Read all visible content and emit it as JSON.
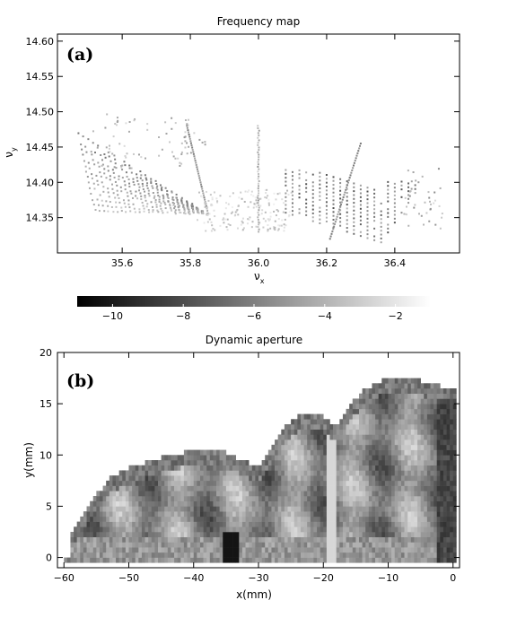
{
  "chart_data": [
    {
      "type": "scatter",
      "panel_label": "(a)",
      "title": "Frequency map",
      "xlabel": "ν",
      "xlabel_sub": "x",
      "ylabel": "ν",
      "ylabel_sub": "y",
      "xlim": [
        35.41,
        36.59
      ],
      "ylim": [
        14.3,
        14.61
      ],
      "xticks": [
        35.6,
        35.8,
        36.0,
        36.2,
        36.4
      ],
      "xtick_labels": [
        "35.6",
        "35.8",
        "36.0",
        "36.2",
        "36.4"
      ],
      "yticks": [
        14.35,
        14.4,
        14.45,
        14.5,
        14.55,
        14.6
      ],
      "ytick_labels": [
        "14.35",
        "14.40",
        "14.45",
        "14.50",
        "14.55",
        "14.60"
      ],
      "grid": false,
      "color_scale": "diffusion (log10), dark = -11, light = -1",
      "features": {
        "left_fan": {
          "apex": [
            35.85,
            14.355
          ],
          "x_range": [
            35.47,
            35.85
          ],
          "top_y_at_left": 14.47
        },
        "near_center_resonance": {
          "x_bottom": 35.85,
          "x_top": 35.79,
          "y_range": [
            14.36,
            14.48
          ]
        },
        "vertical_line_36": {
          "x": 36.0,
          "y_range": [
            14.33,
            14.48
          ]
        },
        "crossing_line": {
          "from": [
            36.21,
            14.32
          ],
          "to": [
            36.3,
            14.455
          ]
        },
        "right_fan": {
          "apex": [
            36.36,
            14.315
          ],
          "x_range": [
            36.08,
            36.46
          ],
          "top_y_at_right": 14.4
        }
      }
    },
    {
      "type": "colorbar",
      "range": [
        -11,
        -1
      ],
      "ticks": [
        -10,
        -8,
        -6,
        -4,
        -2
      ],
      "tick_labels": [
        "−10",
        "−8",
        "−6",
        "−4",
        "−2"
      ]
    },
    {
      "type": "heatmap",
      "panel_label": "(b)",
      "title": "Dynamic aperture",
      "xlabel": "x(mm)",
      "ylabel": "y(mm)",
      "xlim": [
        -61,
        1
      ],
      "ylim": [
        -1,
        20
      ],
      "xticks": [
        -60,
        -50,
        -40,
        -30,
        -20,
        -10,
        0
      ],
      "xtick_labels": [
        "−60",
        "−50",
        "−40",
        "−30",
        "−20",
        "−10",
        "0"
      ],
      "yticks": [
        0,
        5,
        10,
        15,
        20
      ],
      "ytick_labels": [
        "0",
        "5",
        "10",
        "15",
        "20"
      ],
      "grid": false,
      "aperture_boundary": [
        [
          -59,
          2
        ],
        [
          -56,
          5
        ],
        [
          -53,
          7.5
        ],
        [
          -50,
          8.5
        ],
        [
          -45,
          9.5
        ],
        [
          -40,
          10.2
        ],
        [
          -35,
          10.0
        ],
        [
          -30,
          8.5
        ],
        [
          -28,
          10.5
        ],
        [
          -26,
          12.5
        ],
        [
          -24,
          13.5
        ],
        [
          -22,
          13.8
        ],
        [
          -20,
          13.5
        ],
        [
          -18,
          12.5
        ],
        [
          -16,
          14.5
        ],
        [
          -14,
          16
        ],
        [
          -12,
          16.8
        ],
        [
          -10,
          17.2
        ],
        [
          -5,
          17.0
        ],
        [
          -2,
          16.5
        ],
        [
          0,
          16.5
        ]
      ],
      "dark_columns_x": [
        -35,
        -34
      ],
      "bright_resonance_x": -19
    }
  ]
}
